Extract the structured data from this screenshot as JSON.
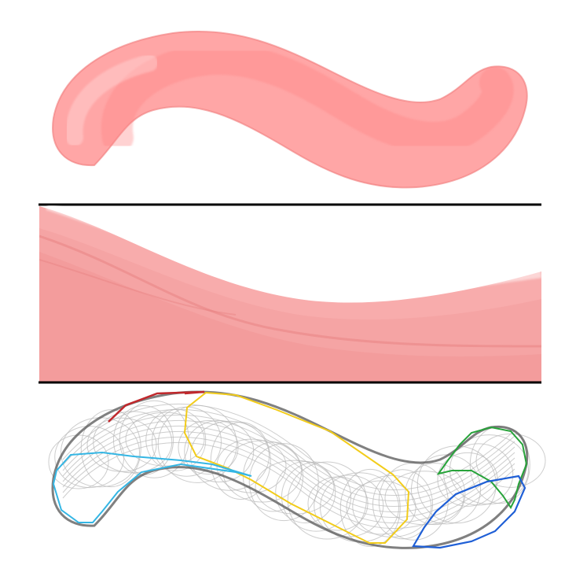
{
  "figure": {
    "description_panels": [
      "stroke-render",
      "zoomed-detail",
      "polygon-decomposition"
    ],
    "colors": {
      "stroke_fill": "#ff8a8a",
      "stroke_dark": "#f07a7a",
      "frame_line": "#000000",
      "outline_gray": "#555555",
      "mesh_gray": "#b8b8b8",
      "poly_red": "#c0282c",
      "poly_yellow": "#f2cc1a",
      "poly_cyan": "#34b6e4",
      "poly_green": "#27a33a",
      "poly_blue": "#1f5fd6",
      "background": "#ffffff"
    }
  }
}
